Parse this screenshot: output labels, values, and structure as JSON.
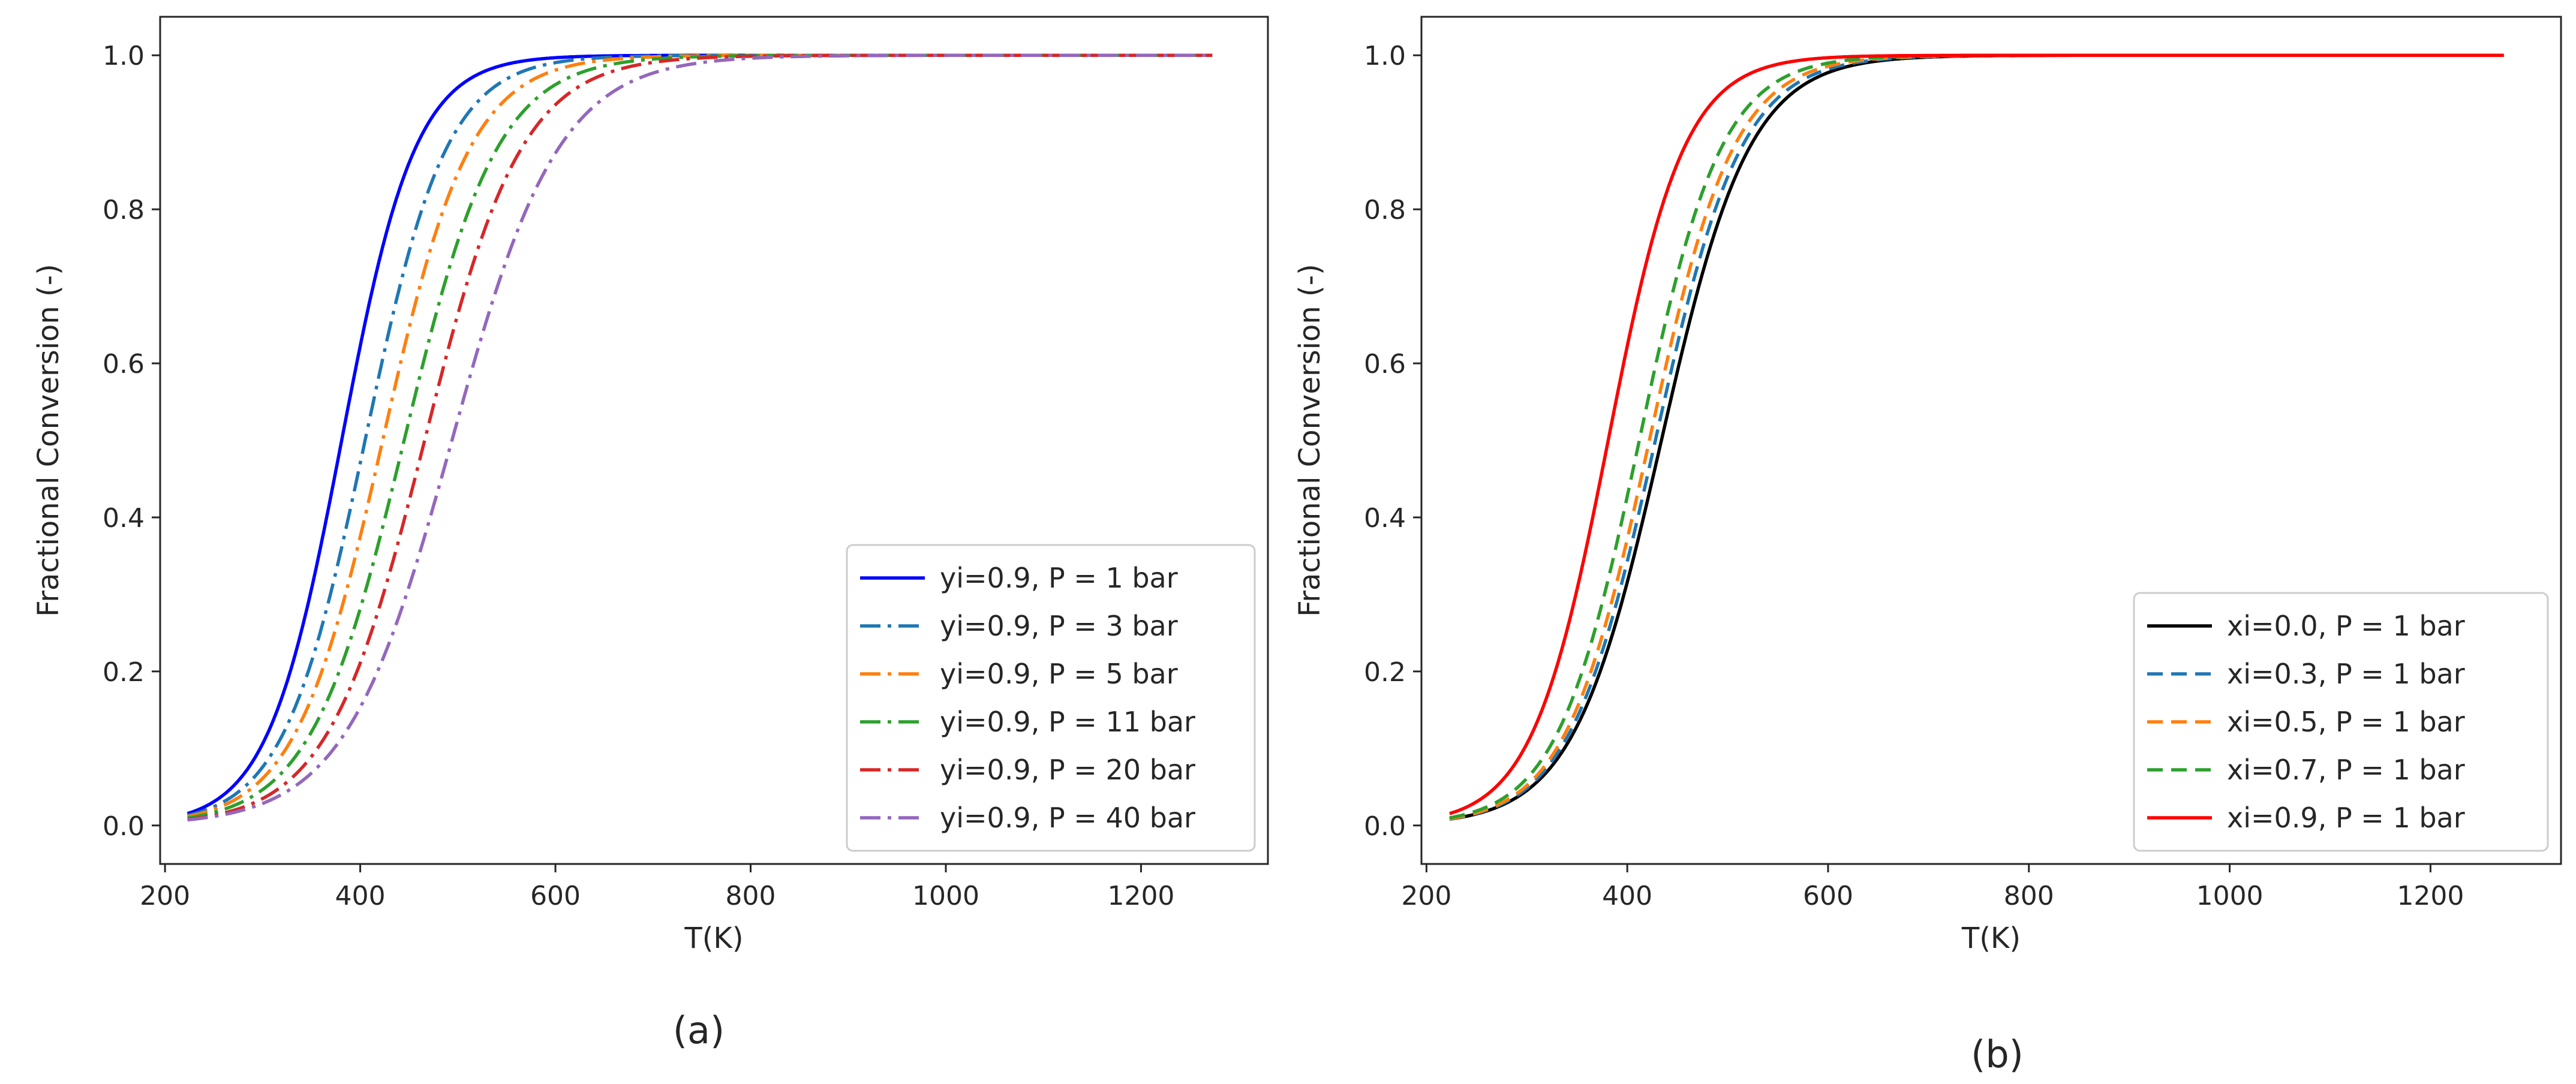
{
  "chart_data": [
    {
      "type": "line",
      "panel_label": "(a)",
      "xlabel": "T(K)",
      "ylabel": "Fractional Conversion (-)",
      "xlim": [
        195,
        1330
      ],
      "ylim": [
        -0.05,
        1.05
      ],
      "xticks": [
        200,
        400,
        600,
        800,
        1000,
        1200
      ],
      "yticks": [
        0.0,
        0.2,
        0.4,
        0.6,
        0.8,
        1.0
      ],
      "x_start": 223,
      "x_end": 1273,
      "legend_position": "lower-right",
      "series": [
        {
          "name": "yi=0.9, P = 1 bar",
          "color": "#0000ff",
          "dash": "solid",
          "midpoint": 381,
          "scale": 38
        },
        {
          "name": "yi=0.9, P = 3 bar",
          "color": "#1f77b4",
          "dash": "dashdot",
          "midpoint": 405,
          "scale": 42
        },
        {
          "name": "yi=0.9, P = 5 bar",
          "color": "#ff7f0e",
          "dash": "dashdot",
          "midpoint": 423,
          "scale": 45
        },
        {
          "name": "yi=0.9, P = 11 bar",
          "color": "#2ca02c",
          "dash": "dashdot",
          "midpoint": 445,
          "scale": 48
        },
        {
          "name": "yi=0.9, P = 20 bar",
          "color": "#d62728",
          "dash": "dashdot",
          "midpoint": 466,
          "scale": 50
        },
        {
          "name": "yi=0.9, P = 40 bar",
          "color": "#9467bd",
          "dash": "dashdot",
          "midpoint": 494,
          "scale": 55
        }
      ]
    },
    {
      "type": "line",
      "panel_label": "(b)",
      "xlabel": "T(K)",
      "ylabel": "Fractional Conversion (-)",
      "xlim": [
        195,
        1330
      ],
      "ylim": [
        -0.05,
        1.05
      ],
      "xticks": [
        200,
        400,
        600,
        800,
        1000,
        1200
      ],
      "yticks": [
        0.0,
        0.2,
        0.4,
        0.6,
        0.8,
        1.0
      ],
      "x_start": 223,
      "x_end": 1273,
      "legend_position": "lower-right",
      "series": [
        {
          "name": "xi=0.0, P = 1 bar",
          "color": "#000000",
          "dash": "solid",
          "midpoint": 434,
          "scale": 44
        },
        {
          "name": "xi=0.3, P = 1 bar",
          "color": "#1f77b4",
          "dash": "dashed",
          "midpoint": 428,
          "scale": 43
        },
        {
          "name": "xi=0.5, P = 1 bar",
          "color": "#ff7f0e",
          "dash": "dashed",
          "midpoint": 422,
          "scale": 42
        },
        {
          "name": "xi=0.7, P = 1 bar",
          "color": "#2ca02c",
          "dash": "dashed",
          "midpoint": 412,
          "scale": 41
        },
        {
          "name": "xi=0.9, P = 1 bar",
          "color": "#ff0000",
          "dash": "solid",
          "midpoint": 381,
          "scale": 38
        }
      ]
    }
  ]
}
